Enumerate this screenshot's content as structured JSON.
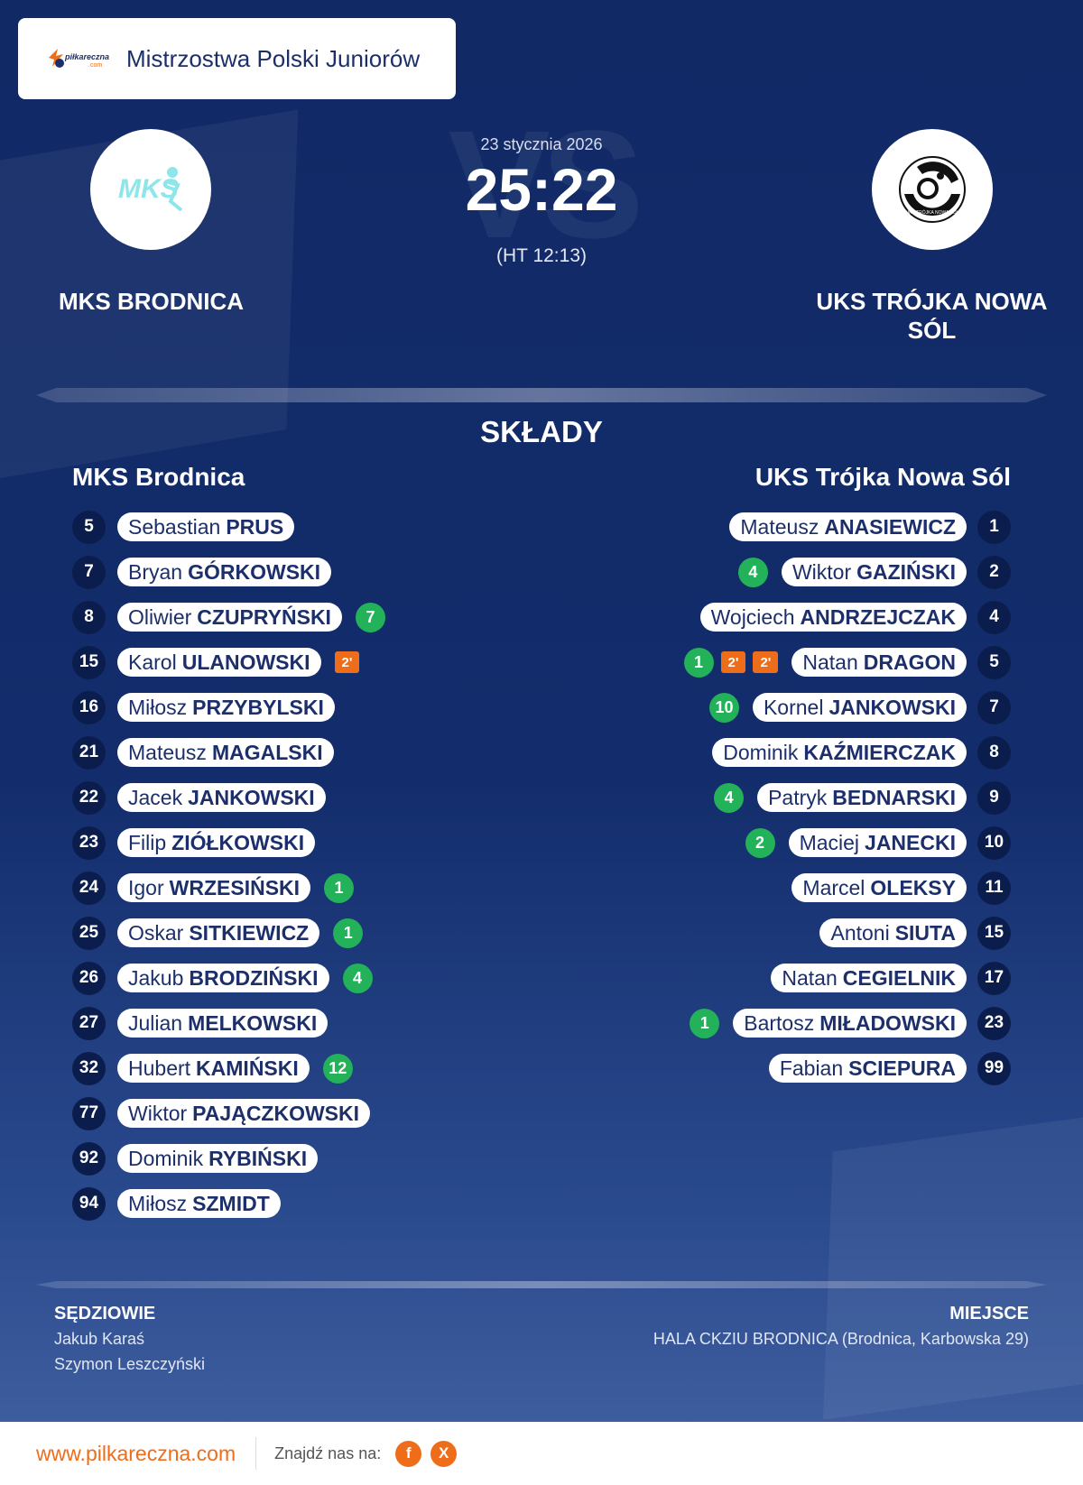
{
  "header": {
    "title": "Mistrzostwa Polski Juniorów",
    "logo_text": "piłkareczna",
    "logo_sub": ".com"
  },
  "match": {
    "date": "23 stycznia 2026",
    "score": "25:22",
    "halftime": "(HT 12:13)",
    "vs_watermark": "VS"
  },
  "home_team": {
    "name": "MKS BRODNICA",
    "logo_text": "MKS"
  },
  "away_team": {
    "name": "UKS TRÓJKA NOWA SÓL",
    "logo_text": "UKS TRÓJKA NOWA SÓL"
  },
  "section_title": "SKŁADY",
  "home_roster": {
    "title": "MKS Brodnica",
    "players": [
      {
        "number": "5",
        "first": "Sebastian",
        "last": "PRUS",
        "goals": "",
        "suspensions": []
      },
      {
        "number": "7",
        "first": "Bryan",
        "last": "GÓRKOWSKI",
        "goals": "",
        "suspensions": []
      },
      {
        "number": "8",
        "first": "Oliwier",
        "last": "CZUPRYŃSKI",
        "goals": "7",
        "suspensions": []
      },
      {
        "number": "15",
        "first": "Karol",
        "last": "ULANOWSKI",
        "goals": "",
        "suspensions": [
          "2'"
        ]
      },
      {
        "number": "16",
        "first": "Miłosz",
        "last": "PRZYBYLSKI",
        "goals": "",
        "suspensions": []
      },
      {
        "number": "21",
        "first": "Mateusz",
        "last": "MAGALSKI",
        "goals": "",
        "suspensions": []
      },
      {
        "number": "22",
        "first": "Jacek",
        "last": "JANKOWSKI",
        "goals": "",
        "suspensions": []
      },
      {
        "number": "23",
        "first": "Filip",
        "last": "ZIÓŁKOWSKI",
        "goals": "",
        "suspensions": []
      },
      {
        "number": "24",
        "first": "Igor",
        "last": "WRZESIŃSKI",
        "goals": "1",
        "suspensions": []
      },
      {
        "number": "25",
        "first": "Oskar",
        "last": "SITKIEWICZ",
        "goals": "1",
        "suspensions": []
      },
      {
        "number": "26",
        "first": "Jakub",
        "last": "BRODZIŃSKI",
        "goals": "4",
        "suspensions": []
      },
      {
        "number": "27",
        "first": "Julian",
        "last": "MELKOWSKI",
        "goals": "",
        "suspensions": []
      },
      {
        "number": "32",
        "first": "Hubert",
        "last": "KAMIŃSKI",
        "goals": "12",
        "suspensions": []
      },
      {
        "number": "77",
        "first": "Wiktor",
        "last": "PAJĄCZKOWSKI",
        "goals": "",
        "suspensions": []
      },
      {
        "number": "92",
        "first": "Dominik",
        "last": "RYBIŃSKI",
        "goals": "",
        "suspensions": []
      },
      {
        "number": "94",
        "first": "Miłosz",
        "last": "SZMIDT",
        "goals": "",
        "suspensions": []
      }
    ]
  },
  "away_roster": {
    "title": "UKS Trójka Nowa Sól",
    "players": [
      {
        "number": "1",
        "first": "Mateusz",
        "last": "ANASIEWICZ",
        "goals": "",
        "suspensions": []
      },
      {
        "number": "2",
        "first": "Wiktor",
        "last": "GAZIŃSKI",
        "goals": "4",
        "suspensions": []
      },
      {
        "number": "4",
        "first": "Wojciech",
        "last": "ANDRZEJCZAK",
        "goals": "",
        "suspensions": []
      },
      {
        "number": "5",
        "first": "Natan",
        "last": "DRAGON",
        "goals": "1",
        "suspensions": [
          "2'",
          "2'"
        ]
      },
      {
        "number": "7",
        "first": "Kornel",
        "last": "JANKOWSKI",
        "goals": "10",
        "suspensions": []
      },
      {
        "number": "8",
        "first": "Dominik",
        "last": "KAŹMIERCZAK",
        "goals": "",
        "suspensions": []
      },
      {
        "number": "9",
        "first": "Patryk",
        "last": "BEDNARSKI",
        "goals": "4",
        "suspensions": []
      },
      {
        "number": "10",
        "first": "Maciej",
        "last": "JANECKI",
        "goals": "2",
        "suspensions": []
      },
      {
        "number": "11",
        "first": "Marcel",
        "last": "OLEKSY",
        "goals": "",
        "suspensions": []
      },
      {
        "number": "15",
        "first": "Antoni",
        "last": "SIUTA",
        "goals": "",
        "suspensions": []
      },
      {
        "number": "17",
        "first": "Natan",
        "last": "CEGIELNIK",
        "goals": "",
        "suspensions": []
      },
      {
        "number": "23",
        "first": "Bartosz",
        "last": "MIŁADOWSKI",
        "goals": "1",
        "suspensions": []
      },
      {
        "number": "99",
        "first": "Fabian",
        "last": "SCIEPURA",
        "goals": "",
        "suspensions": []
      }
    ]
  },
  "officials": {
    "title": "SĘDZIOWIE",
    "names": [
      "Jakub Karaś",
      "Szymon Leszczyński"
    ]
  },
  "venue": {
    "title": "MIEJSCE",
    "text": "HALA CKZIU  BRODNICA (Brodnica, Karbowska 29)"
  },
  "footer": {
    "url": "www.pilkareczna.com",
    "find_us": "Znajdź nas na:",
    "social": [
      {
        "icon": "facebook-icon",
        "glyph": "f"
      },
      {
        "icon": "x-icon",
        "glyph": "X"
      }
    ]
  },
  "colors": {
    "background": "#132d6c",
    "number_badge": "#0b1d4d",
    "goal_badge": "#23b25a",
    "suspension_badge": "#ee6d1a",
    "accent": "#ee6d1a",
    "text_dark": "#1d2f6a"
  }
}
